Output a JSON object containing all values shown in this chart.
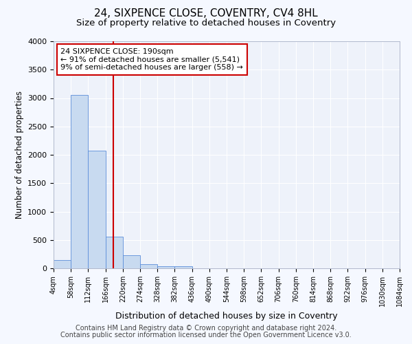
{
  "title": "24, SIXPENCE CLOSE, COVENTRY, CV4 8HL",
  "subtitle": "Size of property relative to detached houses in Coventry",
  "xlabel": "Distribution of detached houses by size in Coventry",
  "ylabel": "Number of detached properties",
  "bin_edges": [
    4,
    58,
    112,
    166,
    220,
    274,
    328,
    382,
    436,
    490,
    544,
    598,
    652,
    706,
    760,
    814,
    868,
    922,
    976,
    1030,
    1084
  ],
  "bar_heights": [
    150,
    3060,
    2070,
    560,
    230,
    70,
    40,
    40,
    0,
    0,
    0,
    0,
    0,
    0,
    0,
    0,
    0,
    0,
    0,
    0
  ],
  "bar_color": "#c8daf0",
  "bar_edgecolor": "#5b8dd9",
  "vline_x": 190,
  "vline_color": "#cc0000",
  "annotation_text": "24 SIXPENCE CLOSE: 190sqm\n← 91% of detached houses are smaller (5,541)\n9% of semi-detached houses are larger (558) →",
  "annotation_box_edgecolor": "#cc0000",
  "ylim": [
    0,
    4000
  ],
  "yticks": [
    0,
    500,
    1000,
    1500,
    2000,
    2500,
    3000,
    3500,
    4000
  ],
  "footer_line1": "Contains HM Land Registry data © Crown copyright and database right 2024.",
  "footer_line2": "Contains public sector information licensed under the Open Government Licence v3.0.",
  "bg_color": "#f5f8ff",
  "axes_bg_color": "#eef2fa",
  "grid_color": "#ffffff",
  "title_fontsize": 11,
  "subtitle_fontsize": 9.5,
  "annotation_fontsize": 8,
  "footer_fontsize": 7,
  "ylabel_fontsize": 8.5,
  "xlabel_fontsize": 9
}
